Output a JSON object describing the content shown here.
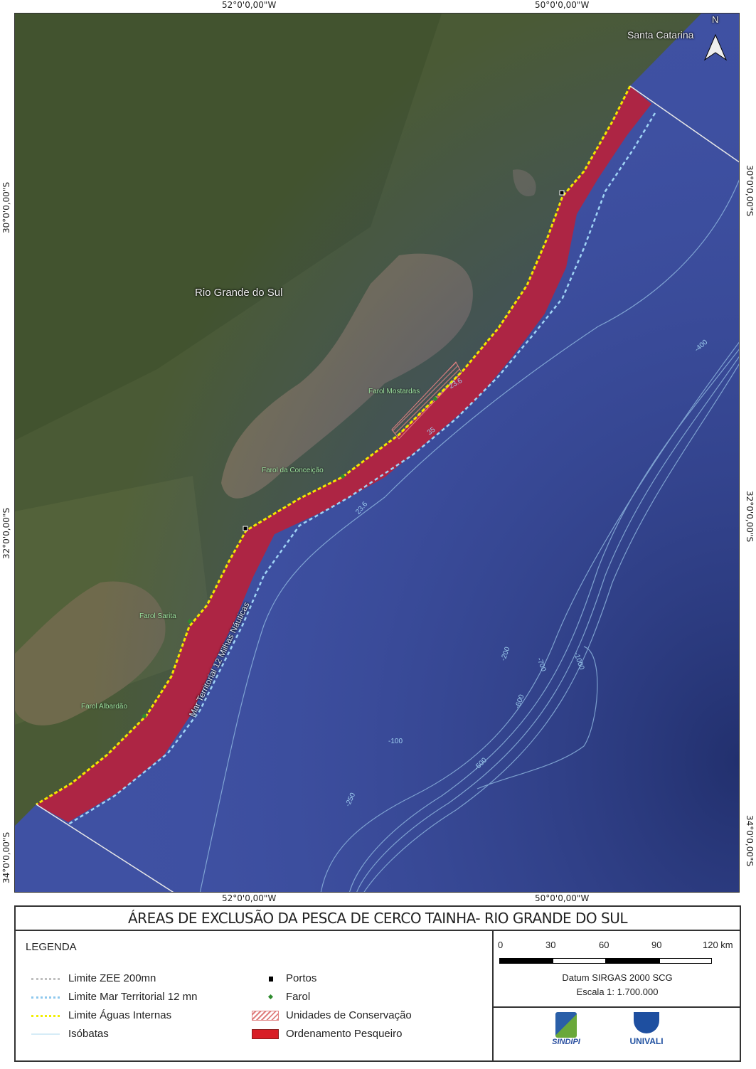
{
  "coordinates": {
    "top": [
      "52°0'0,00\"W",
      "50°0'0,00\"W"
    ],
    "bottom": [
      "52°0'0,00\"W",
      "50°0'0,00\"W"
    ],
    "left": [
      "30°0'0,00\"S",
      "32°0'0,00\"S",
      "34°0'0,00\"S"
    ],
    "right": [
      "30°0'0,00\"S",
      "32°0'0,00\"S",
      "34°0'0,00\"S"
    ]
  },
  "map": {
    "north_label": "N",
    "states": {
      "rs": "Rio Grande do Sul",
      "sc": "Santa Catarina"
    },
    "lighthouses": [
      "Farol Mostardas",
      "Farol da Conceição",
      "Farol Sarita",
      "Farol Albardão"
    ],
    "territorial_sea_label": "Mar Territorial 12 Milhas Náuticas",
    "isobaths": [
      "23.6",
      "35",
      "23.6",
      "-100",
      "-200",
      "-250",
      "-500",
      "-600",
      "-700",
      "-1000",
      "-400"
    ],
    "colors": {
      "ocean": "#3f51a3",
      "exclusion_zone": "#b3233f",
      "land": "#4a5a35",
      "lagoon": "#7a7150",
      "internal_waters_line": "#f2e600",
      "territorial_line": "#9fd3f5"
    }
  },
  "title": "ÁREAS DE EXCLUSÃO DA PESCA DE CERCO TAINHA- RIO GRANDE DO SUL",
  "legend": {
    "heading": "LEGENDA",
    "items": [
      {
        "label": "Limite ZEE 200mn",
        "symbol": "dotted-line",
        "color": "#bfbfbf"
      },
      {
        "label": "Limite Mar Territorial 12 mn",
        "symbol": "dotted-line",
        "color": "#8ec8ee"
      },
      {
        "label": "Limite Águas Internas",
        "symbol": "dotted-line",
        "color": "#f2ee00"
      },
      {
        "label": "Isóbatas",
        "symbol": "line",
        "color": "#d6ecf7"
      },
      {
        "label": "Portos",
        "symbol": "square",
        "color": "#000000"
      },
      {
        "label": "Farol",
        "symbol": "diamond",
        "color": "#2e8b2e"
      },
      {
        "label": "Unidades de Conservação",
        "symbol": "hatch",
        "color": "#e08080"
      },
      {
        "label": "Ordenamento Pesqueiro",
        "symbol": "fill",
        "color": "#d81e26"
      }
    ]
  },
  "scale_bar": {
    "ticks": [
      "0",
      "30",
      "60",
      "90",
      "120 km"
    ]
  },
  "datum": "Datum SIRGAS 2000  SCG",
  "scale": "Escala 1: 1.700.000",
  "logos": {
    "sindipi": "SINDIPI",
    "univali": "UNIVALI"
  }
}
